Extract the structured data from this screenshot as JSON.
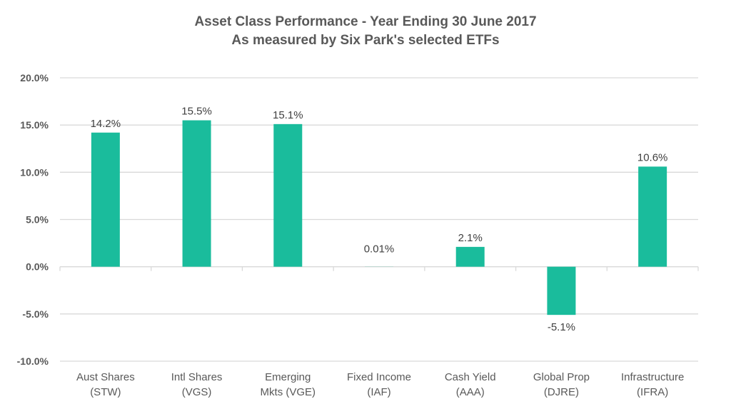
{
  "chart_data": {
    "type": "bar",
    "title": "Asset Class Performance -  Year Ending 30 June 2017",
    "subtitle": "As measured by Six Park's selected ETFs",
    "categories": [
      [
        "Aust Shares",
        "(STW)"
      ],
      [
        "Intl Shares",
        "(VGS)"
      ],
      [
        "Emerging",
        "Mkts (VGE)"
      ],
      [
        "Fixed Income",
        "(IAF)"
      ],
      [
        "Cash Yield",
        "(AAA)"
      ],
      [
        "Global Prop",
        "(DJRE)"
      ],
      [
        "Infrastructure",
        "(IFRA)"
      ]
    ],
    "values": [
      14.2,
      15.5,
      15.1,
      0.01,
      2.1,
      -5.1,
      10.6
    ],
    "data_labels": [
      "14.2%",
      "15.5%",
      "15.1%",
      "0.01%",
      "2.1%",
      "-5.1%",
      "10.6%"
    ],
    "y_ticks": [
      20,
      15,
      10,
      5,
      0,
      -5,
      -10
    ],
    "y_tick_labels": [
      "20.0%",
      "15.0%",
      "10.0%",
      "5.0%",
      "0.0%",
      "-5.0%",
      "-10.0%"
    ],
    "xlabel": "",
    "ylabel": "",
    "ylim": [
      -10,
      20
    ],
    "grid": true,
    "legend": "none",
    "bar_color": "#1ABC9C",
    "grid_color": "#D9D9D9"
  }
}
